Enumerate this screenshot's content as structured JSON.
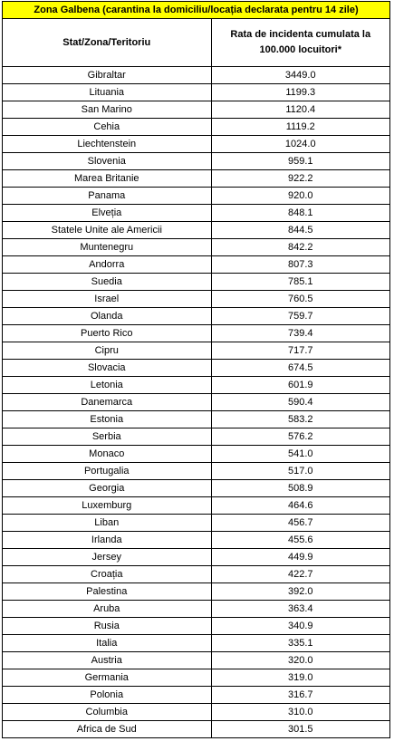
{
  "banner": {
    "title": "Zona Galbena (carantina la domiciliu/locația declarata pentru 14 zile)",
    "background": "#ffff00"
  },
  "table": {
    "headers": [
      "Stat/Zona/Teritoriu",
      "Rata de incidenta cumulata la 100.000 locuitori*"
    ],
    "rows": [
      [
        "Gibraltar",
        "3449.0"
      ],
      [
        "Lituania",
        "1199.3"
      ],
      [
        "San Marino",
        "1120.4"
      ],
      [
        "Cehia",
        "1119.2"
      ],
      [
        "Liechtenstein",
        "1024.0"
      ],
      [
        "Slovenia",
        "959.1"
      ],
      [
        "Marea Britanie",
        "922.2"
      ],
      [
        "Panama",
        "920.0"
      ],
      [
        "Elveția",
        "848.1"
      ],
      [
        "Statele Unite ale Americii",
        "844.5"
      ],
      [
        "Muntenegru",
        "842.2"
      ],
      [
        "Andorra",
        "807.3"
      ],
      [
        "Suedia",
        "785.1"
      ],
      [
        "Israel",
        "760.5"
      ],
      [
        "Olanda",
        "759.7"
      ],
      [
        "Puerto Rico",
        "739.4"
      ],
      [
        "Cipru",
        "717.7"
      ],
      [
        "Slovacia",
        "674.5"
      ],
      [
        "Letonia",
        "601.9"
      ],
      [
        "Danemarca",
        "590.4"
      ],
      [
        "Estonia",
        "583.2"
      ],
      [
        "Serbia",
        "576.2"
      ],
      [
        "Monaco",
        "541.0"
      ],
      [
        "Portugalia",
        "517.0"
      ],
      [
        "Georgia",
        "508.9"
      ],
      [
        "Luxemburg",
        "464.6"
      ],
      [
        "Liban",
        "456.7"
      ],
      [
        "Irlanda",
        "455.6"
      ],
      [
        "Jersey",
        "449.9"
      ],
      [
        "Croația",
        "422.7"
      ],
      [
        "Palestina",
        "392.0"
      ],
      [
        "Aruba",
        "363.4"
      ],
      [
        "Rusia",
        "340.9"
      ],
      [
        "Italia",
        "335.1"
      ],
      [
        "Austria",
        "320.0"
      ],
      [
        "Germania",
        "319.0"
      ],
      [
        "Polonia",
        "316.7"
      ],
      [
        "Columbia",
        "310.0"
      ],
      [
        "Africa de Sud",
        "301.5"
      ]
    ]
  }
}
